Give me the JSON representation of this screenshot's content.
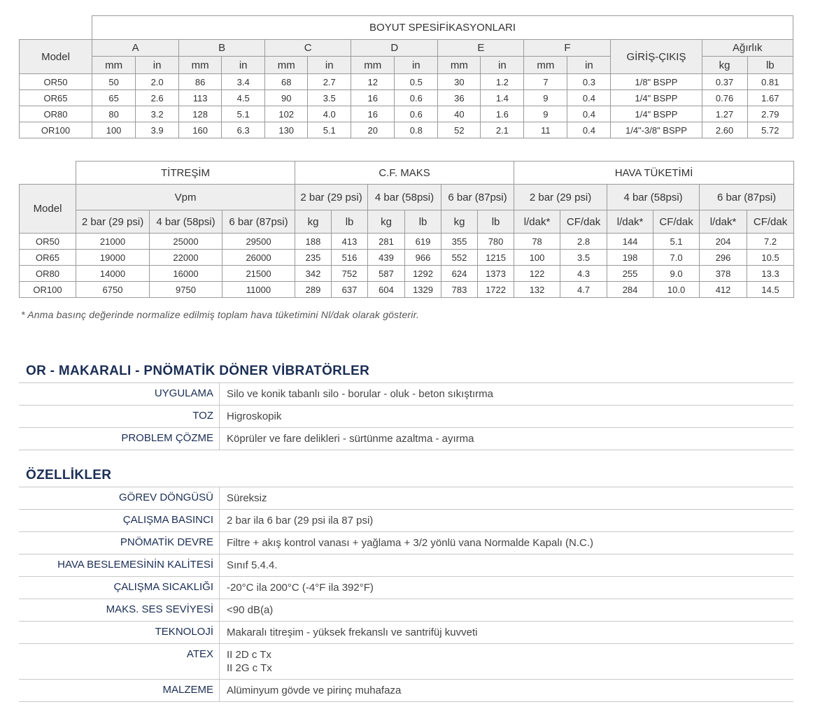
{
  "table1": {
    "title": "BOYUT SPESİFİKASYONLARI",
    "model_label": "Model",
    "dims": [
      "A",
      "B",
      "C",
      "D",
      "E",
      "F"
    ],
    "unit_mm": "mm",
    "unit_in": "in",
    "port_label": "GİRİŞ-ÇIKIŞ",
    "weight_label": "Ağırlık",
    "unit_kg": "kg",
    "unit_lb": "lb",
    "rows": [
      [
        "OR50",
        "50",
        "2.0",
        "86",
        "3.4",
        "68",
        "2.7",
        "12",
        "0.5",
        "30",
        "1.2",
        "7",
        "0.3",
        "1/8\" BSPP",
        "0.37",
        "0.81"
      ],
      [
        "OR65",
        "65",
        "2.6",
        "113",
        "4.5",
        "90",
        "3.5",
        "16",
        "0.6",
        "36",
        "1.4",
        "9",
        "0.4",
        "1/4\" BSPP",
        "0.76",
        "1.67"
      ],
      [
        "OR80",
        "80",
        "3.2",
        "128",
        "5.1",
        "102",
        "4.0",
        "16",
        "0.6",
        "40",
        "1.6",
        "9",
        "0.4",
        "1/4\" BSPP",
        "1.27",
        "2.79"
      ],
      [
        "OR100",
        "100",
        "3.9",
        "160",
        "6.3",
        "130",
        "5.1",
        "20",
        "0.8",
        "52",
        "2.1",
        "11",
        "0.4",
        "1/4\"-3/8\" BSPP",
        "2.60",
        "5.72"
      ]
    ]
  },
  "table2": {
    "model_label": "Model",
    "vibration_title": "TİTREŞİM",
    "cf_title": "C.F. MAKS",
    "air_title": "HAVA TÜKETİMİ",
    "vpm_label": "Vpm",
    "pressures": [
      "2 bar (29 psi)",
      "4 bar (58psi)",
      "6 bar (87psi)"
    ],
    "air_pressures": [
      "2 bar (29 psi)",
      "4 bar (58psi)",
      "6 bar (87psi)"
    ],
    "unit_kg": "kg",
    "unit_lb": "lb",
    "unit_ldak": "l/dak*",
    "unit_cfdak": "CF/dak",
    "rows": [
      [
        "OR50",
        "21000",
        "25000",
        "29500",
        "188",
        "413",
        "281",
        "619",
        "355",
        "780",
        "78",
        "2.8",
        "144",
        "5.1",
        "204",
        "7.2"
      ],
      [
        "OR65",
        "19000",
        "22000",
        "26000",
        "235",
        "516",
        "439",
        "966",
        "552",
        "1215",
        "100",
        "3.5",
        "198",
        "7.0",
        "296",
        "10.5"
      ],
      [
        "OR80",
        "14000",
        "16000",
        "21500",
        "342",
        "752",
        "587",
        "1292",
        "624",
        "1373",
        "122",
        "4.3",
        "255",
        "9.0",
        "378",
        "13.3"
      ],
      [
        "OR100",
        "6750",
        "9750",
        "11000",
        "289",
        "637",
        "604",
        "1329",
        "783",
        "1722",
        "132",
        "4.7",
        "284",
        "10.0",
        "412",
        "14.5"
      ]
    ]
  },
  "footnote": "* Anma basınç değerinde normalize edilmiş toplam hava tüketimini Nl/dak olarak gösterir.",
  "section1": {
    "title": "OR - MAKARALI - PNÖMATİK DÖNER VİBRATÖRLER",
    "rows": [
      {
        "key": "UYGULAMA",
        "val": "Silo ve konik tabanlı silo - borular - oluk - beton sıkıştırma"
      },
      {
        "key": "TOZ",
        "val": "Higroskopik"
      },
      {
        "key": "PROBLEM ÇÖZME",
        "val": "Köprüler ve fare delikleri - sürtünme azaltma - ayırma"
      }
    ]
  },
  "section2": {
    "title": "ÖZELLİKLER",
    "rows": [
      {
        "key": "GÖREV DÖNGÜSÜ",
        "val": "Süreksiz"
      },
      {
        "key": "ÇALIŞMA BASINCI",
        "val": "2 bar ila 6 bar (29 psi ila 87 psi)"
      },
      {
        "key": "PNÖMATİK DEVRE",
        "val": "Filtre + akış kontrol vanası + yağlama + 3/2 yönlü vana Normalde Kapalı (N.C.)"
      },
      {
        "key": "HAVA BESLEMESİNİN KALİTESİ",
        "val": "Sınıf 5.4.4."
      },
      {
        "key": "ÇALIŞMA SICAKLIĞI",
        "val": "-20°C ila 200°C (-4°F ila 392°F)"
      },
      {
        "key": "MAKS. SES SEVİYESİ",
        "val": "<90 dB(a)"
      },
      {
        "key": "TEKNOLOJİ",
        "val": "Makaralı titreşim - yüksek frekanslı ve santrifüj kuvveti"
      },
      {
        "key": "ATEX",
        "val": "II 2D c Tx",
        "val2": "II 2G c Tx"
      },
      {
        "key": "MALZEME",
        "val": "Alüminyum gövde ve pirinç muhafaza"
      }
    ]
  }
}
